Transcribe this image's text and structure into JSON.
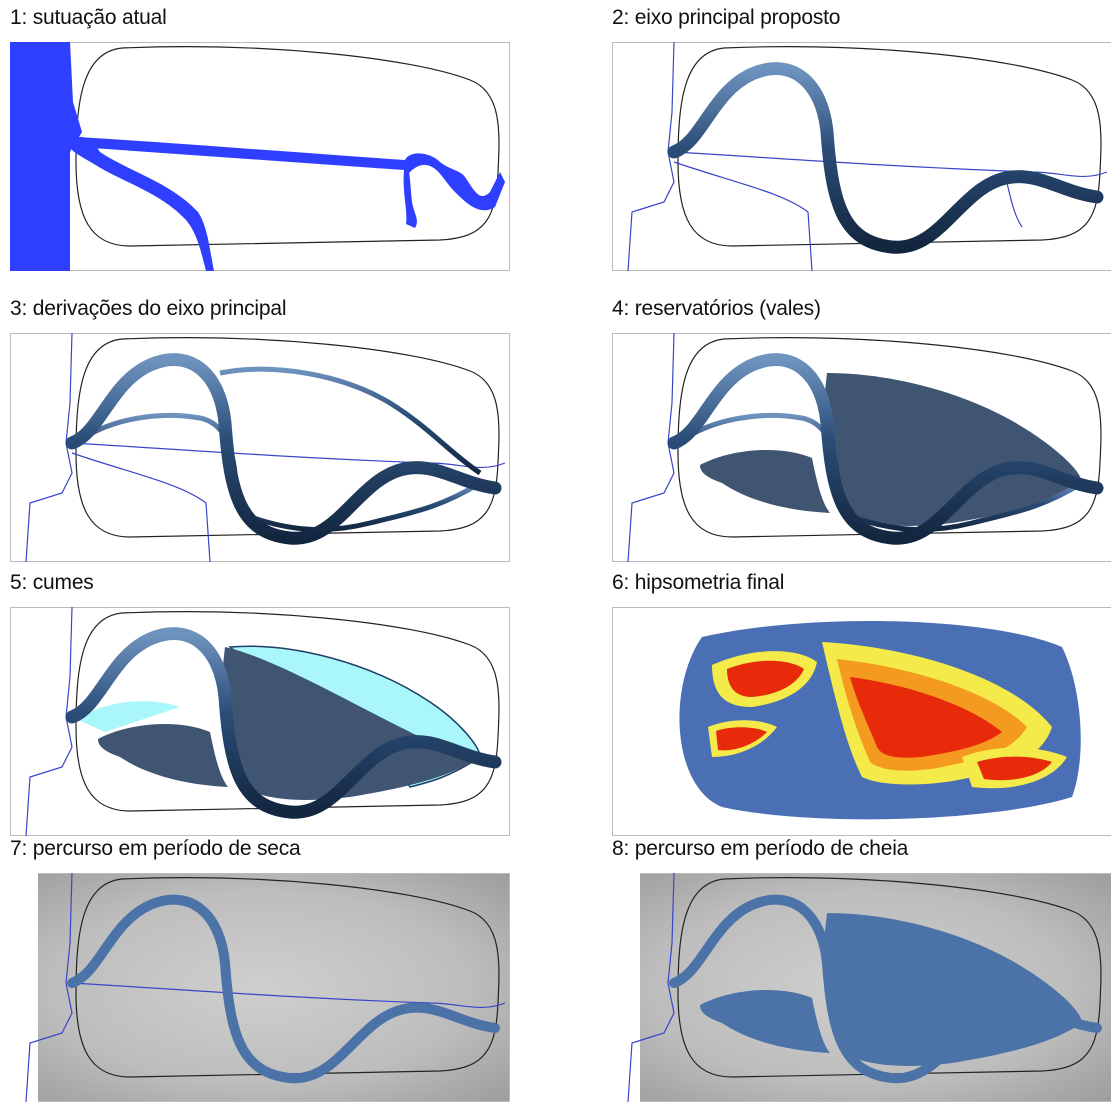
{
  "colors": {
    "river_current": "#2f3fff",
    "river_thin": "#3a45c8",
    "main_axis": "#1f3f66",
    "reservoir": "#3f5572",
    "summit": "#aaf7fb",
    "hypsometry_base": "#4a6fb5",
    "hypsometry_yellow": "#f4ea4a",
    "hypsometry_orange": "#f39a1f",
    "hypsometry_red": "#e62a0a",
    "path_blue": "#4b73a8",
    "relief_gray": "#b9b9b9"
  },
  "panels": [
    {
      "id": "p1",
      "title": "1: sutuação atual"
    },
    {
      "id": "p2",
      "title": "2: eixo principal proposto"
    },
    {
      "id": "p3",
      "title": "3: derivações do eixo principal"
    },
    {
      "id": "p4",
      "title": "4: reservatórios (vales)"
    },
    {
      "id": "p5",
      "title": "5: cumes"
    },
    {
      "id": "p6",
      "title": "6: hipsometria final"
    },
    {
      "id": "p7",
      "title": "7: percurso em período de seca"
    },
    {
      "id": "p8",
      "title": "8: percurso em período de cheia"
    }
  ]
}
